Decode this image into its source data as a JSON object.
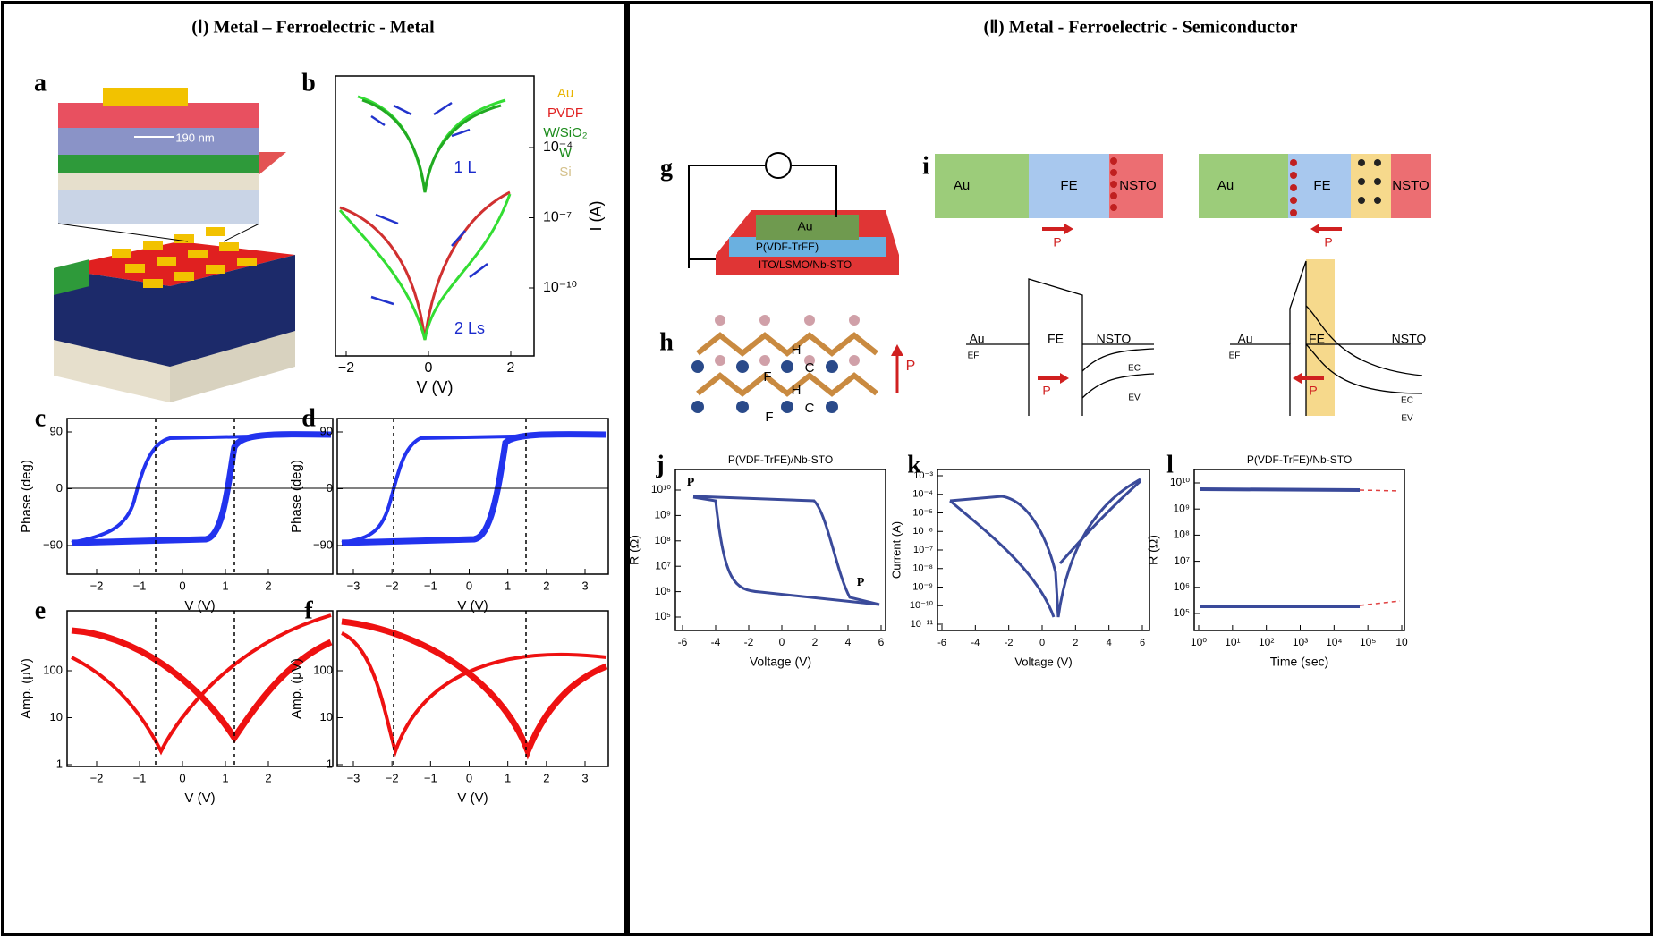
{
  "sections": [
    {
      "title": "(Ⅰ) Metal – Ferroelectric - Metal"
    },
    {
      "title": "(Ⅱ) Metal - Ferroelectric - Semiconductor"
    }
  ],
  "panels": {
    "a": {
      "label": "a",
      "layers": [
        "Au",
        "PVDF",
        "W/SiO₂",
        "W",
        "Si"
      ],
      "dimension": "190 nm"
    },
    "b": {
      "label": "b",
      "xlabel": "V (V)",
      "ylabel": "I (A)",
      "xticks": [
        "−2",
        "0",
        "2"
      ],
      "yticks": [
        "10⁻⁴",
        "10⁻⁷",
        "10⁻¹⁰"
      ],
      "annotations": [
        "1 L",
        "2 Ls"
      ]
    },
    "c": {
      "label": "c",
      "xlabel": "V (V)",
      "ylabel": "Phase (deg)",
      "xticks": [
        "−2",
        "−1",
        "0",
        "1",
        "2"
      ],
      "yticks": [
        "90",
        "0",
        "−90"
      ]
    },
    "d": {
      "label": "d",
      "xlabel": "V (V)",
      "ylabel": "Phase (deg)",
      "xticks": [
        "−3",
        "−2",
        "−1",
        "0",
        "1",
        "2",
        "3"
      ],
      "yticks": [
        "90",
        "0",
        "−90"
      ]
    },
    "e": {
      "label": "e",
      "xlabel": "V (V)",
      "ylabel": "Amp. (μV)",
      "xticks": [
        "−2",
        "−1",
        "0",
        "1",
        "2"
      ],
      "yticks": [
        "100",
        "10",
        "1"
      ]
    },
    "f": {
      "label": "f",
      "xlabel": "V (V)",
      "ylabel": "Amp. (μV)",
      "xticks": [
        "−3",
        "−2",
        "−1",
        "0",
        "1",
        "2",
        "3"
      ],
      "yticks": [
        "100",
        "10",
        "1"
      ]
    },
    "g": {
      "label": "g",
      "layers": [
        "Au",
        "P(VDF-TrFE)",
        "ITO/LSMO/Nb-STO"
      ]
    },
    "h": {
      "label": "h",
      "atoms": [
        "H",
        "C",
        "F",
        "H",
        "C",
        "F"
      ],
      "polarization": "P"
    },
    "i": {
      "label": "i",
      "blocks": [
        {
          "regions": [
            "Au",
            "FE",
            "NSTO"
          ],
          "polarization": "P"
        },
        {
          "regions": [
            "Au",
            "FE",
            "NSTO"
          ],
          "polarization": "P"
        }
      ],
      "bands": [
        {
          "regions": [
            "Au",
            "FE",
            "NSTO"
          ],
          "levels": [
            "EF",
            "EC",
            "EV"
          ],
          "polarization": "P"
        },
        {
          "regions": [
            "Au",
            "FE",
            "NSTO"
          ],
          "levels": [
            "EF",
            "EC",
            "EV"
          ],
          "polarization": "P"
        }
      ]
    },
    "j": {
      "label": "j",
      "title": "P(VDF-TrFE)/Nb-STO",
      "xlabel": "Voltage (V)",
      "ylabel": "R (Ω)",
      "xticks": [
        "-6",
        "-4",
        "-2",
        "0",
        "2",
        "4",
        "6"
      ],
      "yticks": [
        "10¹⁰",
        "10⁹",
        "10⁸",
        "10⁷",
        "10⁶",
        "10⁵"
      ],
      "annotations": [
        "P",
        "P"
      ]
    },
    "k": {
      "label": "k",
      "xlabel": "Voltage (V)",
      "ylabel": "Current (A)",
      "xticks": [
        "-6",
        "-4",
        "-2",
        "0",
        "2",
        "4",
        "6"
      ],
      "yticks": [
        "10⁻³",
        "10⁻⁴",
        "10⁻⁵",
        "10⁻⁶",
        "10⁻⁷",
        "10⁻⁸",
        "10⁻⁹",
        "10⁻¹⁰",
        "10⁻¹¹"
      ]
    },
    "l": {
      "label": "l",
      "title": "P(VDF-TrFE)/Nb-STO",
      "xlabel": "Time (sec)",
      "ylabel": "R (Ω)",
      "xticks": [
        "10⁰",
        "10¹",
        "10²",
        "10³",
        "10⁴",
        "10⁵",
        "10"
      ],
      "yticks": [
        "10¹⁰",
        "10⁹",
        "10⁸",
        "10⁷",
        "10⁶",
        "10⁵"
      ]
    }
  }
}
